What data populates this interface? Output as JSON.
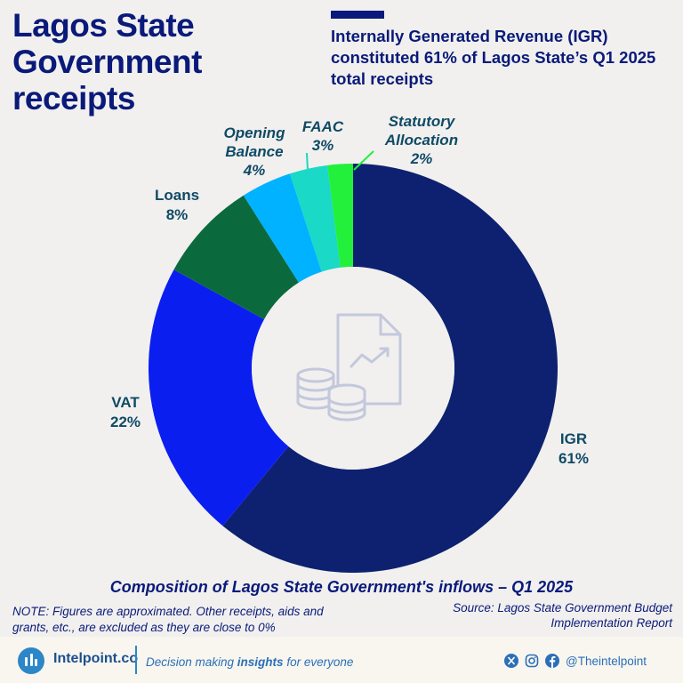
{
  "header": {
    "title": "Lagos State Government receipts",
    "subtitle": "Internally Generated Revenue (IGR) constituted 61% of Lagos State’s Q1 2025 total receipts"
  },
  "chart_data": {
    "type": "pie",
    "style": "donut",
    "title": "Composition of Lagos State Government's inflows – Q1 2025",
    "slices": [
      {
        "name": "IGR",
        "value": 61,
        "label": "61%",
        "color": "#0d2170"
      },
      {
        "name": "VAT",
        "value": 22,
        "label": "22%",
        "color": "#0b1ef0"
      },
      {
        "name": "Loans",
        "value": 8,
        "label": "8%",
        "color": "#0b6a3d"
      },
      {
        "name": "Opening Balance",
        "value": 4,
        "label": "4%",
        "color": "#00b2ff"
      },
      {
        "name": "FAAC",
        "value": 3,
        "label": "3%",
        "color": "#1ad9c6"
      },
      {
        "name": "Statutory Allocation",
        "value": 2,
        "label": "2%",
        "color": "#22f03b"
      }
    ],
    "center_icon": "finance-report-coins-icon"
  },
  "labels": {
    "igr": {
      "name": "IGR",
      "pct": "61%"
    },
    "vat": {
      "name": "VAT",
      "pct": "22%"
    },
    "loans": {
      "name": "Loans",
      "pct": "8%"
    },
    "opening": {
      "name1": "Opening",
      "name2": "Balance",
      "pct": "4%"
    },
    "faac": {
      "name": "FAAC",
      "pct": "3%"
    },
    "statutory": {
      "name1": "Statutory",
      "name2": "Allocation",
      "pct": "2%"
    }
  },
  "notes": {
    "caption": "Composition of Lagos State Government's inflows – Q1 2025",
    "note": "NOTE: Figures are approximated. Other receipts, aids and grants, etc., are excluded as they are close to 0%",
    "source": "Source: Lagos State Government Budget Implementation Report"
  },
  "footer": {
    "brand": "Intelpoint.co",
    "tagline_pre": "Decision making ",
    "tagline_bold": "insights",
    "tagline_post": " for everyone",
    "handle": "@Theintelpoint",
    "icons": [
      "x-icon",
      "instagram-icon",
      "facebook-icon"
    ]
  },
  "colors": {
    "navy": "#0a1a7a",
    "label_teal": "#0f4a66",
    "background": "#f1f0ee"
  }
}
